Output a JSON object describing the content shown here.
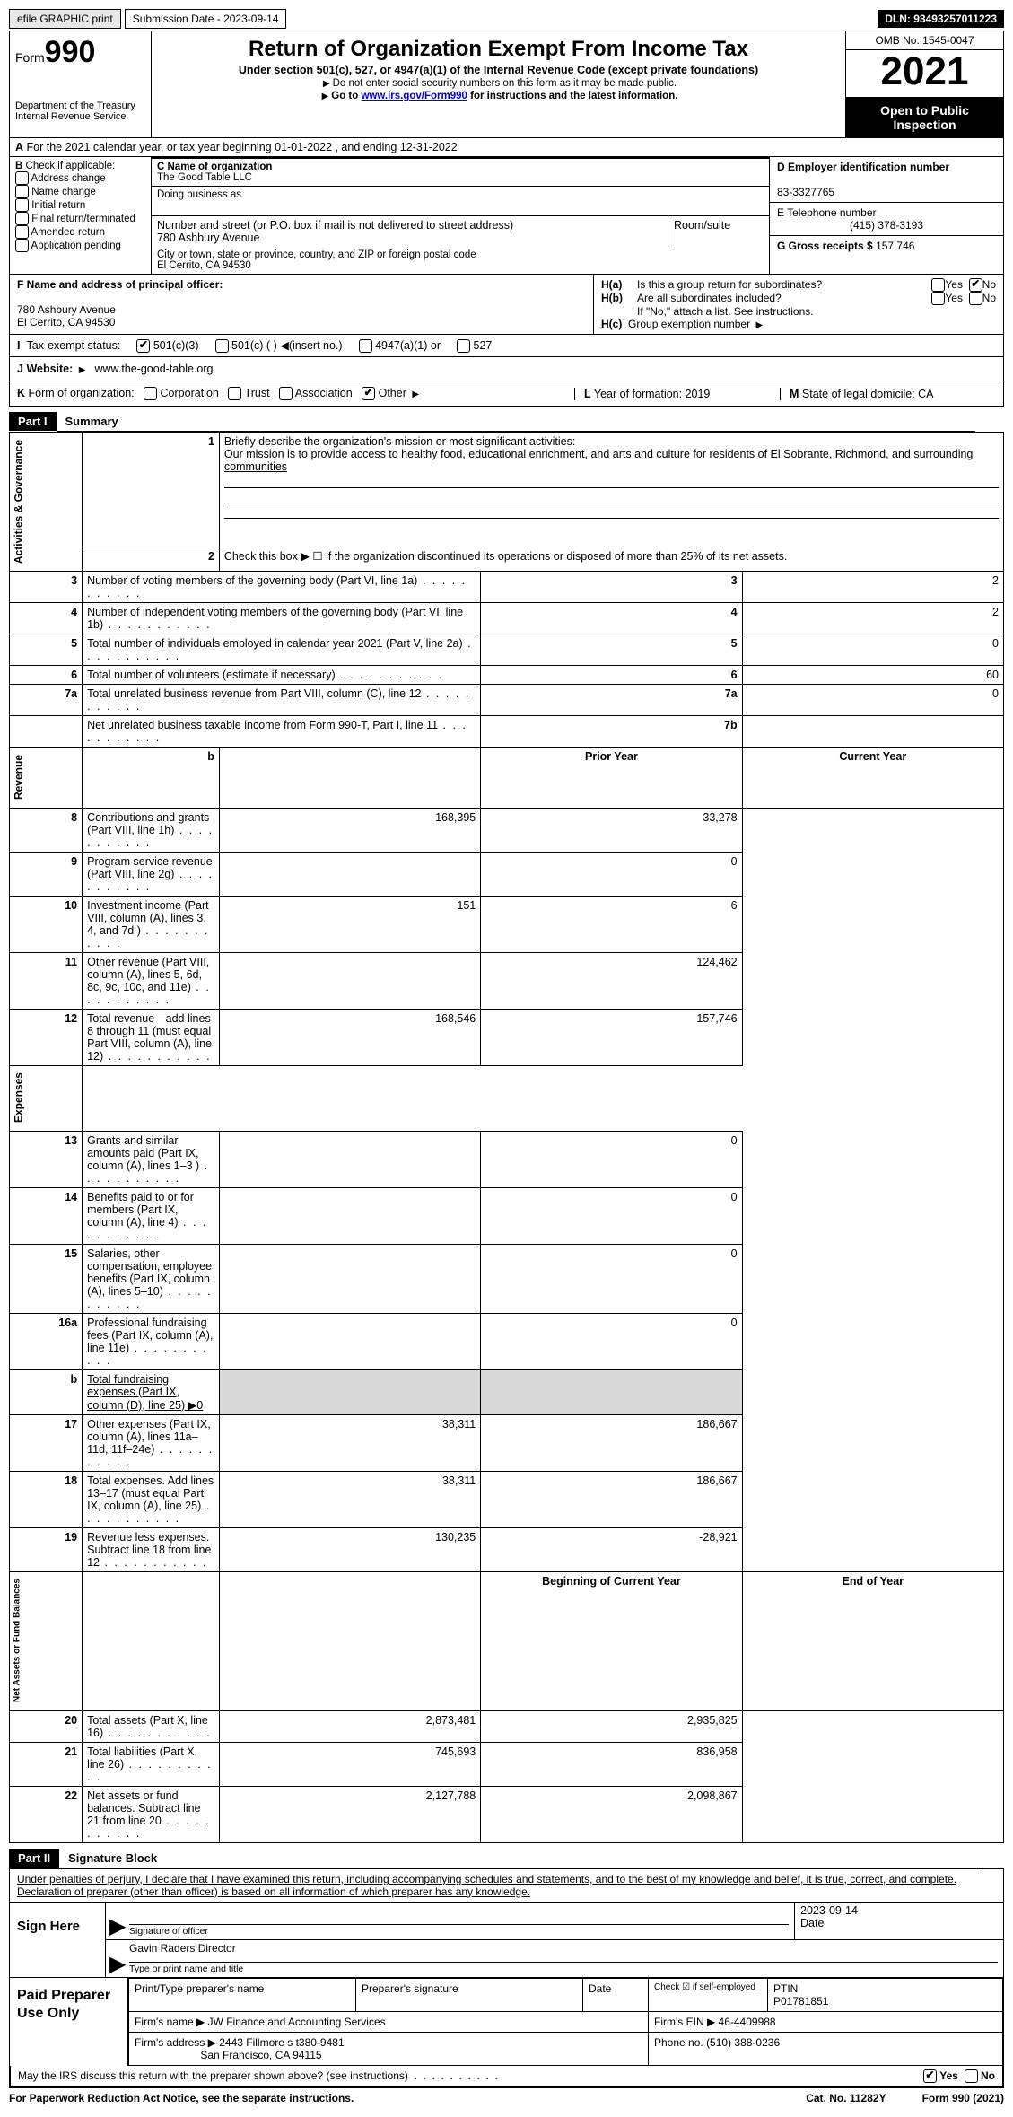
{
  "topbar": {
    "efile": "efile GRAPHIC print",
    "submission": "Submission Date - 2023-09-14",
    "dln": "DLN: 93493257011223"
  },
  "header": {
    "form_label": "Form",
    "form_number": "990",
    "title": "Return of Organization Exempt From Income Tax",
    "subtitle": "Under section 501(c), 527, or 4947(a)(1) of the Internal Revenue Code (except private foundations)",
    "note1": "Do not enter social security numbers on this form as it may be made public.",
    "note2_prefix": "Go to ",
    "note2_link": "www.irs.gov/Form990",
    "note2_suffix": " for instructions and the latest information.",
    "dept": "Department of the Treasury\nInternal Revenue Service",
    "omb": "OMB No. 1545-0047",
    "year": "2021",
    "inspection": "Open to Public Inspection"
  },
  "period": {
    "text_a": "A",
    "text": "For the 2021 calendar year, or tax year beginning 01-01-2022    , and ending 12-31-2022"
  },
  "section_b": {
    "label": "B",
    "check_label": "Check if applicable:",
    "opts": [
      "Address change",
      "Name change",
      "Initial return",
      "Final return/terminated",
      "Amended return",
      "Application pending"
    ]
  },
  "section_c": {
    "name_label": "C Name of organization",
    "name": "The Good Table LLC",
    "dba_label": "Doing business as",
    "addr_label": "Number and street (or P.O. box if mail is not delivered to street address)",
    "room_label": "Room/suite",
    "addr": "780 Ashbury Avenue",
    "city_label": "City or town, state or province, country, and ZIP or foreign postal code",
    "city": "El Cerrito, CA  94530"
  },
  "section_d": {
    "ein_label": "D Employer identification number",
    "ein": "83-3327765",
    "tel_label": "E Telephone number",
    "tel": "(415) 378-3193",
    "gross_label": "G Gross receipts $",
    "gross": "157,746"
  },
  "section_f": {
    "label": "F  Name and address of principal officer:",
    "addr1": "780 Ashbury Avenue",
    "addr2": "El Cerrito, CA  94530"
  },
  "section_h": {
    "ha": "H(a)",
    "ha_text": "Is this a group return for subordinates?",
    "hb": "H(b)",
    "hb_text": "Are all subordinates included?",
    "hb_note": "If \"No,\" attach a list. See instructions.",
    "hc": "H(c)",
    "hc_text": "Group exemption number",
    "yes": "Yes",
    "no": "No"
  },
  "section_i": {
    "label": "I",
    "text": "Tax-exempt status:",
    "o1": "501(c)(3)",
    "o2": "501(c) (  )",
    "o2b": "(insert no.)",
    "o3": "4947(a)(1) or",
    "o4": "527"
  },
  "section_j": {
    "label": "J",
    "text": "Website:",
    "url": "www.the-good-table.org"
  },
  "section_k": {
    "label": "K",
    "text": "Form of organization:",
    "o1": "Corporation",
    "o2": "Trust",
    "o3": "Association",
    "o4": "Other",
    "l_label": "L",
    "l_text": "Year of formation: 2019",
    "m_label": "M",
    "m_text": "State of legal domicile: CA"
  },
  "parts": {
    "p1": "Part I",
    "p1_title": "Summary",
    "p2": "Part II",
    "p2_title": "Signature Block"
  },
  "summary": {
    "q1": "Briefly describe the organization's mission or most significant activities:",
    "mission": "Our mission is to provide access to healthy food, educational enrichment, and arts and culture for residents of El Sobrante, Richmond, and surrounding communities",
    "q2": "Check this box ▶ ☐ if the organization discontinued its operations or disposed of more than 25% of its net assets.",
    "rows_ag": [
      {
        "n": "3",
        "l": "Number of voting members of the governing body (Part VI, line 1a)",
        "box": "3",
        "v": "2"
      },
      {
        "n": "4",
        "l": "Number of independent voting members of the governing body (Part VI, line 1b)",
        "box": "4",
        "v": "2"
      },
      {
        "n": "5",
        "l": "Total number of individuals employed in calendar year 2021 (Part V, line 2a)",
        "box": "5",
        "v": "0"
      },
      {
        "n": "6",
        "l": "Total number of volunteers (estimate if necessary)",
        "box": "6",
        "v": "60"
      },
      {
        "n": "7a",
        "l": "Total unrelated business revenue from Part VIII, column (C), line 12",
        "box": "7a",
        "v": "0"
      },
      {
        "n": "",
        "l": "Net unrelated business taxable income from Form 990-T, Part I, line 11",
        "box": "7b",
        "v": ""
      }
    ],
    "hdr_prior": "Prior Year",
    "hdr_curr": "Current Year",
    "rev": [
      {
        "n": "8",
        "l": "Contributions and grants (Part VIII, line 1h)",
        "p": "168,395",
        "c": "33,278"
      },
      {
        "n": "9",
        "l": "Program service revenue (Part VIII, line 2g)",
        "p": "",
        "c": "0"
      },
      {
        "n": "10",
        "l": "Investment income (Part VIII, column (A), lines 3, 4, and 7d )",
        "p": "151",
        "c": "6"
      },
      {
        "n": "11",
        "l": "Other revenue (Part VIII, column (A), lines 5, 6d, 8c, 9c, 10c, and 11e)",
        "p": "",
        "c": "124,462"
      },
      {
        "n": "12",
        "l": "Total revenue—add lines 8 through 11 (must equal Part VIII, column (A), line 12)",
        "p": "168,546",
        "c": "157,746"
      }
    ],
    "exp": [
      {
        "n": "13",
        "l": "Grants and similar amounts paid (Part IX, column (A), lines 1–3 )",
        "p": "",
        "c": "0"
      },
      {
        "n": "14",
        "l": "Benefits paid to or for members (Part IX, column (A), line 4)",
        "p": "",
        "c": "0"
      },
      {
        "n": "15",
        "l": "Salaries, other compensation, employee benefits (Part IX, column (A), lines 5–10)",
        "p": "",
        "c": "0"
      },
      {
        "n": "16a",
        "l": "Professional fundraising fees (Part IX, column (A), line 11e)",
        "p": "",
        "c": "0"
      },
      {
        "n": "b",
        "l": "Total fundraising expenses (Part IX, column (D), line 25) ▶0",
        "p": "shade",
        "c": "shade"
      },
      {
        "n": "17",
        "l": "Other expenses (Part IX, column (A), lines 11a–11d, 11f–24e)",
        "p": "38,311",
        "c": "186,667"
      },
      {
        "n": "18",
        "l": "Total expenses. Add lines 13–17 (must equal Part IX, column (A), line 25)",
        "p": "38,311",
        "c": "186,667"
      },
      {
        "n": "19",
        "l": "Revenue less expenses. Subtract line 18 from line 12",
        "p": "130,235",
        "c": "-28,921"
      }
    ],
    "hdr_beg": "Beginning of Current Year",
    "hdr_end": "End of Year",
    "net": [
      {
        "n": "20",
        "l": "Total assets (Part X, line 16)",
        "p": "2,873,481",
        "c": "2,935,825"
      },
      {
        "n": "21",
        "l": "Total liabilities (Part X, line 26)",
        "p": "745,693",
        "c": "836,958"
      },
      {
        "n": "22",
        "l": "Net assets or fund balances. Subtract line 21 from line 20",
        "p": "2,127,788",
        "c": "2,098,867"
      }
    ],
    "vlabels": {
      "ag": "Activities & Governance",
      "rev": "Revenue",
      "exp": "Expenses",
      "net": "Net Assets or Fund Balances"
    },
    "b_label": "b"
  },
  "sig": {
    "decl": "Under penalties of perjury, I declare that I have examined this return, including accompanying schedules and statements, and to the best of my knowledge and belief, it is true, correct, and complete. Declaration of preparer (other than officer) is based on all information of which preparer has any knowledge.",
    "sign_here": "Sign Here",
    "sig_officer": "Signature of officer",
    "date": "Date",
    "date_val": "2023-09-14",
    "name": "Gavin Raders  Director",
    "name_label": "Type or print name and title",
    "paid": "Paid Preparer Use Only",
    "pt_name": "Print/Type preparer's name",
    "pt_sig": "Preparer's signature",
    "pt_date": "Date",
    "pt_check": "Check ☑ if self-employed",
    "ptin_label": "PTIN",
    "ptin": "P01781851",
    "firm_name_l": "Firm's name    ▶",
    "firm_name": "JW Finance and Accounting Services",
    "firm_ein_l": "Firm's EIN ▶",
    "firm_ein": "46-4409988",
    "firm_addr_l": "Firm's address ▶",
    "firm_addr1": "2443 Fillmore s t380-9481",
    "firm_addr2": "San Francisco, CA  94115",
    "phone_l": "Phone no.",
    "phone": "(510) 388-0236",
    "discuss": "May the IRS discuss this return with the preparer shown above? (see instructions)",
    "yes": "Yes",
    "no": "No"
  },
  "footer": {
    "pra": "For Paperwork Reduction Act Notice, see the separate instructions.",
    "cat": "Cat. No. 11282Y",
    "form": "Form 990 (2021)"
  }
}
